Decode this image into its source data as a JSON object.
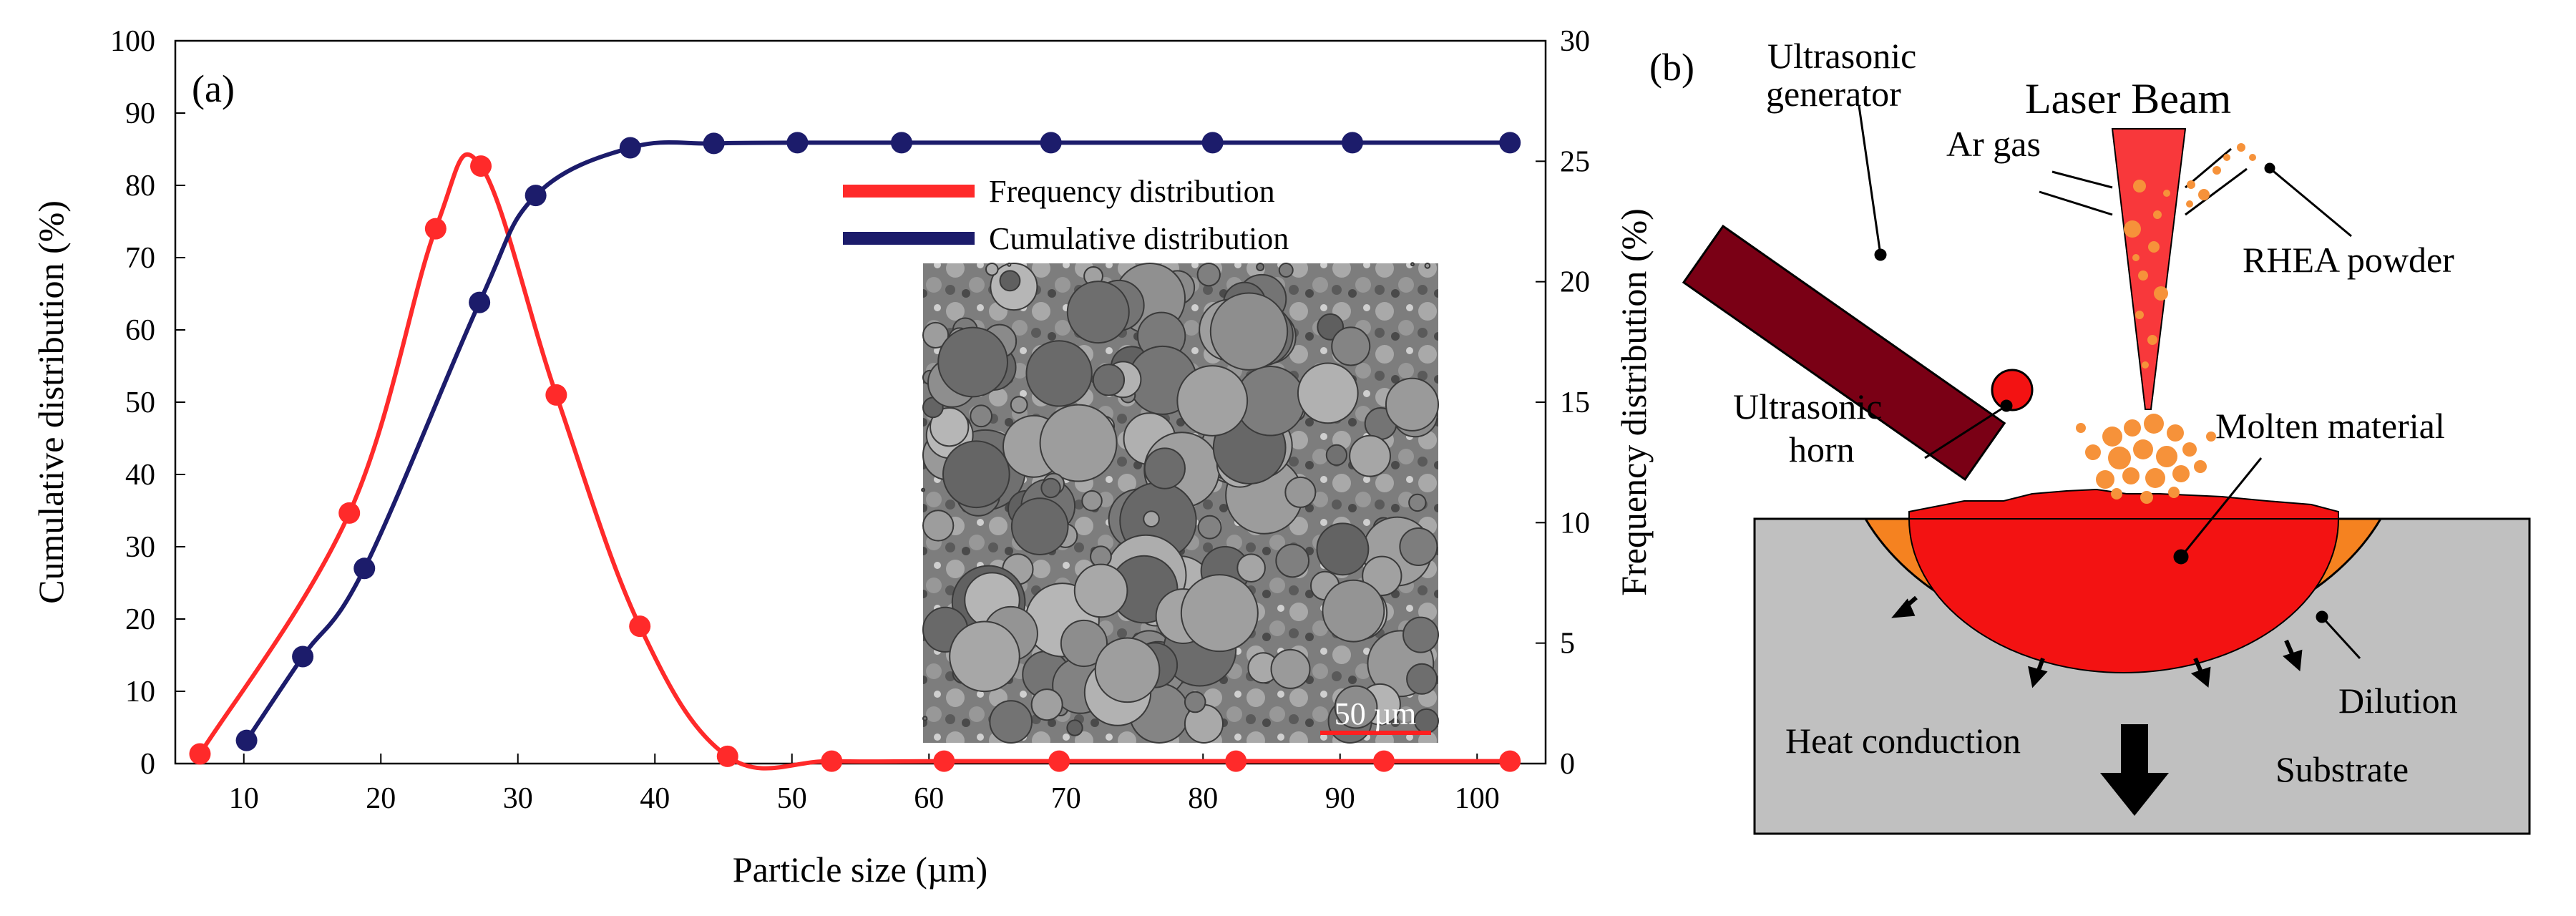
{
  "chart_data": {
    "type": "line",
    "panel_label": "(a)",
    "xlabel": "Particle size (µm)",
    "ylabel": "Cumulative distribution (%)",
    "y2label": "Frequency distribution (%)",
    "xlim": [
      5,
      105
    ],
    "ylim": [
      0,
      100
    ],
    "y2lim": [
      0,
      30
    ],
    "xticks": [
      10,
      20,
      30,
      40,
      50,
      60,
      70,
      80,
      90,
      100
    ],
    "yticks": [
      0,
      10,
      20,
      30,
      40,
      50,
      60,
      70,
      80,
      90,
      100
    ],
    "y2ticks": [
      0,
      5,
      10,
      15,
      20,
      25,
      30
    ],
    "series": [
      {
        "name": "Frequency distribution",
        "axis": "right",
        "color": "#ff2a2a",
        "points": [
          [
            6.8,
            0.4
          ],
          [
            17.7,
            10.4
          ],
          [
            24.0,
            22.2
          ],
          [
            27.3,
            24.8
          ],
          [
            32.8,
            15.3
          ],
          [
            38.9,
            5.7
          ],
          [
            45.3,
            0.3
          ],
          [
            52.9,
            0.1
          ],
          [
            61.1,
            0.1
          ],
          [
            69.5,
            0.1
          ],
          [
            82.4,
            0.1
          ],
          [
            93.2,
            0.1
          ],
          [
            102.4,
            0.1
          ]
        ]
      },
      {
        "name": "Cumulative distribution",
        "axis": "left",
        "color": "#1c1c6b",
        "points": [
          [
            10.2,
            3.2
          ],
          [
            14.3,
            14.8
          ],
          [
            18.8,
            27.0
          ],
          [
            27.2,
            63.8
          ],
          [
            31.3,
            78.6
          ],
          [
            38.2,
            85.2
          ],
          [
            44.3,
            85.8
          ],
          [
            50.4,
            85.9
          ],
          [
            58.0,
            85.9
          ],
          [
            68.9,
            85.9
          ],
          [
            80.7,
            85.9
          ],
          [
            90.9,
            85.9
          ],
          [
            102.4,
            85.9
          ]
        ]
      }
    ],
    "legend_position": "top-right",
    "inset": {
      "description_label": "SEM micrograph",
      "scale_bar": "50 µm"
    }
  },
  "schematic": {
    "panel_label": "(b)",
    "labels": {
      "generator": [
        "Ultrasonic",
        "generator"
      ],
      "laser": "Laser Beam",
      "argas": "Ar gas",
      "powder": "RHEA powder",
      "horn": [
        "Ultrasonic",
        "horn"
      ],
      "molten": "Molten material",
      "heat": "Heat conduction",
      "dilution": "Dilution",
      "substrate": "Substrate"
    },
    "colors": {
      "substrate": "#c0c0c0",
      "melt": "#f31212",
      "dilution": "#f58220",
      "generator": "#7a0015",
      "beam": "#f8383b",
      "powder": "#f6923a"
    }
  }
}
